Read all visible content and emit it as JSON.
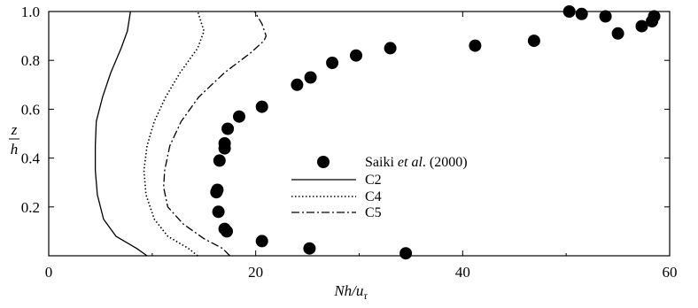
{
  "chart_data": {
    "type": "scatter",
    "xlim": [
      0,
      60
    ],
    "ylim": [
      0,
      1.0
    ],
    "x_ticks": [
      "0",
      "20",
      "40",
      "60"
    ],
    "y_ticks": [
      "0.2",
      "0.4",
      "0.6",
      "0.8",
      "1.0"
    ],
    "xlabel": {
      "main": "Nh/u",
      "sub": "τ"
    },
    "ylabel": {
      "numerator": "z",
      "denominator": "h"
    },
    "legend": {
      "placement": "center",
      "entries": [
        {
          "series": 0,
          "pre": "Saiki ",
          "em": "et al",
          "post": ". (2000)"
        },
        {
          "series": 1,
          "text": "C2"
        },
        {
          "series": 2,
          "text": "C4"
        },
        {
          "series": 3,
          "text": "C5"
        }
      ]
    },
    "series": [
      {
        "type": "scatter",
        "points": [
          [
            34.5,
            0.01
          ],
          [
            25.2,
            0.03
          ],
          [
            20.6,
            0.06
          ],
          [
            17.2,
            0.1
          ],
          [
            17.0,
            0.11
          ],
          [
            16.4,
            0.18
          ],
          [
            16.2,
            0.26
          ],
          [
            16.3,
            0.27
          ],
          [
            16.5,
            0.39
          ],
          [
            17.0,
            0.44
          ],
          [
            17.0,
            0.46
          ],
          [
            17.3,
            0.52
          ],
          [
            18.4,
            0.57
          ],
          [
            20.6,
            0.61
          ],
          [
            24.0,
            0.7
          ],
          [
            25.3,
            0.73
          ],
          [
            27.4,
            0.79
          ],
          [
            29.7,
            0.82
          ],
          [
            33.0,
            0.85
          ],
          [
            41.2,
            0.86
          ],
          [
            46.9,
            0.88
          ],
          [
            50.3,
            1.0
          ],
          [
            51.5,
            0.99
          ],
          [
            53.8,
            0.98
          ],
          [
            55.0,
            0.91
          ],
          [
            57.3,
            0.94
          ],
          [
            58.3,
            0.96
          ],
          [
            58.5,
            0.98
          ]
        ]
      },
      {
        "type": "line",
        "dash": "solid",
        "points": [
          [
            9.5,
            0.0
          ],
          [
            8.5,
            0.03
          ],
          [
            6.5,
            0.08
          ],
          [
            5.3,
            0.15
          ],
          [
            4.7,
            0.25
          ],
          [
            4.5,
            0.35
          ],
          [
            4.5,
            0.45
          ],
          [
            4.6,
            0.55
          ],
          [
            5.2,
            0.65
          ],
          [
            6.0,
            0.75
          ],
          [
            7.0,
            0.85
          ],
          [
            7.6,
            0.92
          ],
          [
            7.9,
            1.0
          ]
        ]
      },
      {
        "type": "line",
        "dash": "dotted",
        "points": [
          [
            14.4,
            0.0
          ],
          [
            13.5,
            0.03
          ],
          [
            11.5,
            0.08
          ],
          [
            10.2,
            0.15
          ],
          [
            9.4,
            0.25
          ],
          [
            9.2,
            0.35
          ],
          [
            9.5,
            0.45
          ],
          [
            10.2,
            0.55
          ],
          [
            11.3,
            0.65
          ],
          [
            12.7,
            0.75
          ],
          [
            14.4,
            0.85
          ],
          [
            15.0,
            0.92
          ],
          [
            14.7,
            0.96
          ],
          [
            14.4,
            1.0
          ]
        ]
      },
      {
        "type": "line",
        "dash": "dashdot",
        "points": [
          [
            17.5,
            0.0
          ],
          [
            16.8,
            0.03
          ],
          [
            15.0,
            0.07
          ],
          [
            13.0,
            0.13
          ],
          [
            11.5,
            0.2
          ],
          [
            11.1,
            0.28
          ],
          [
            11.2,
            0.35
          ],
          [
            11.7,
            0.45
          ],
          [
            12.8,
            0.55
          ],
          [
            14.5,
            0.65
          ],
          [
            17.0,
            0.75
          ],
          [
            19.5,
            0.83
          ],
          [
            20.8,
            0.88
          ],
          [
            21.0,
            0.9
          ],
          [
            20.6,
            0.95
          ],
          [
            19.9,
            1.0
          ]
        ]
      }
    ]
  }
}
